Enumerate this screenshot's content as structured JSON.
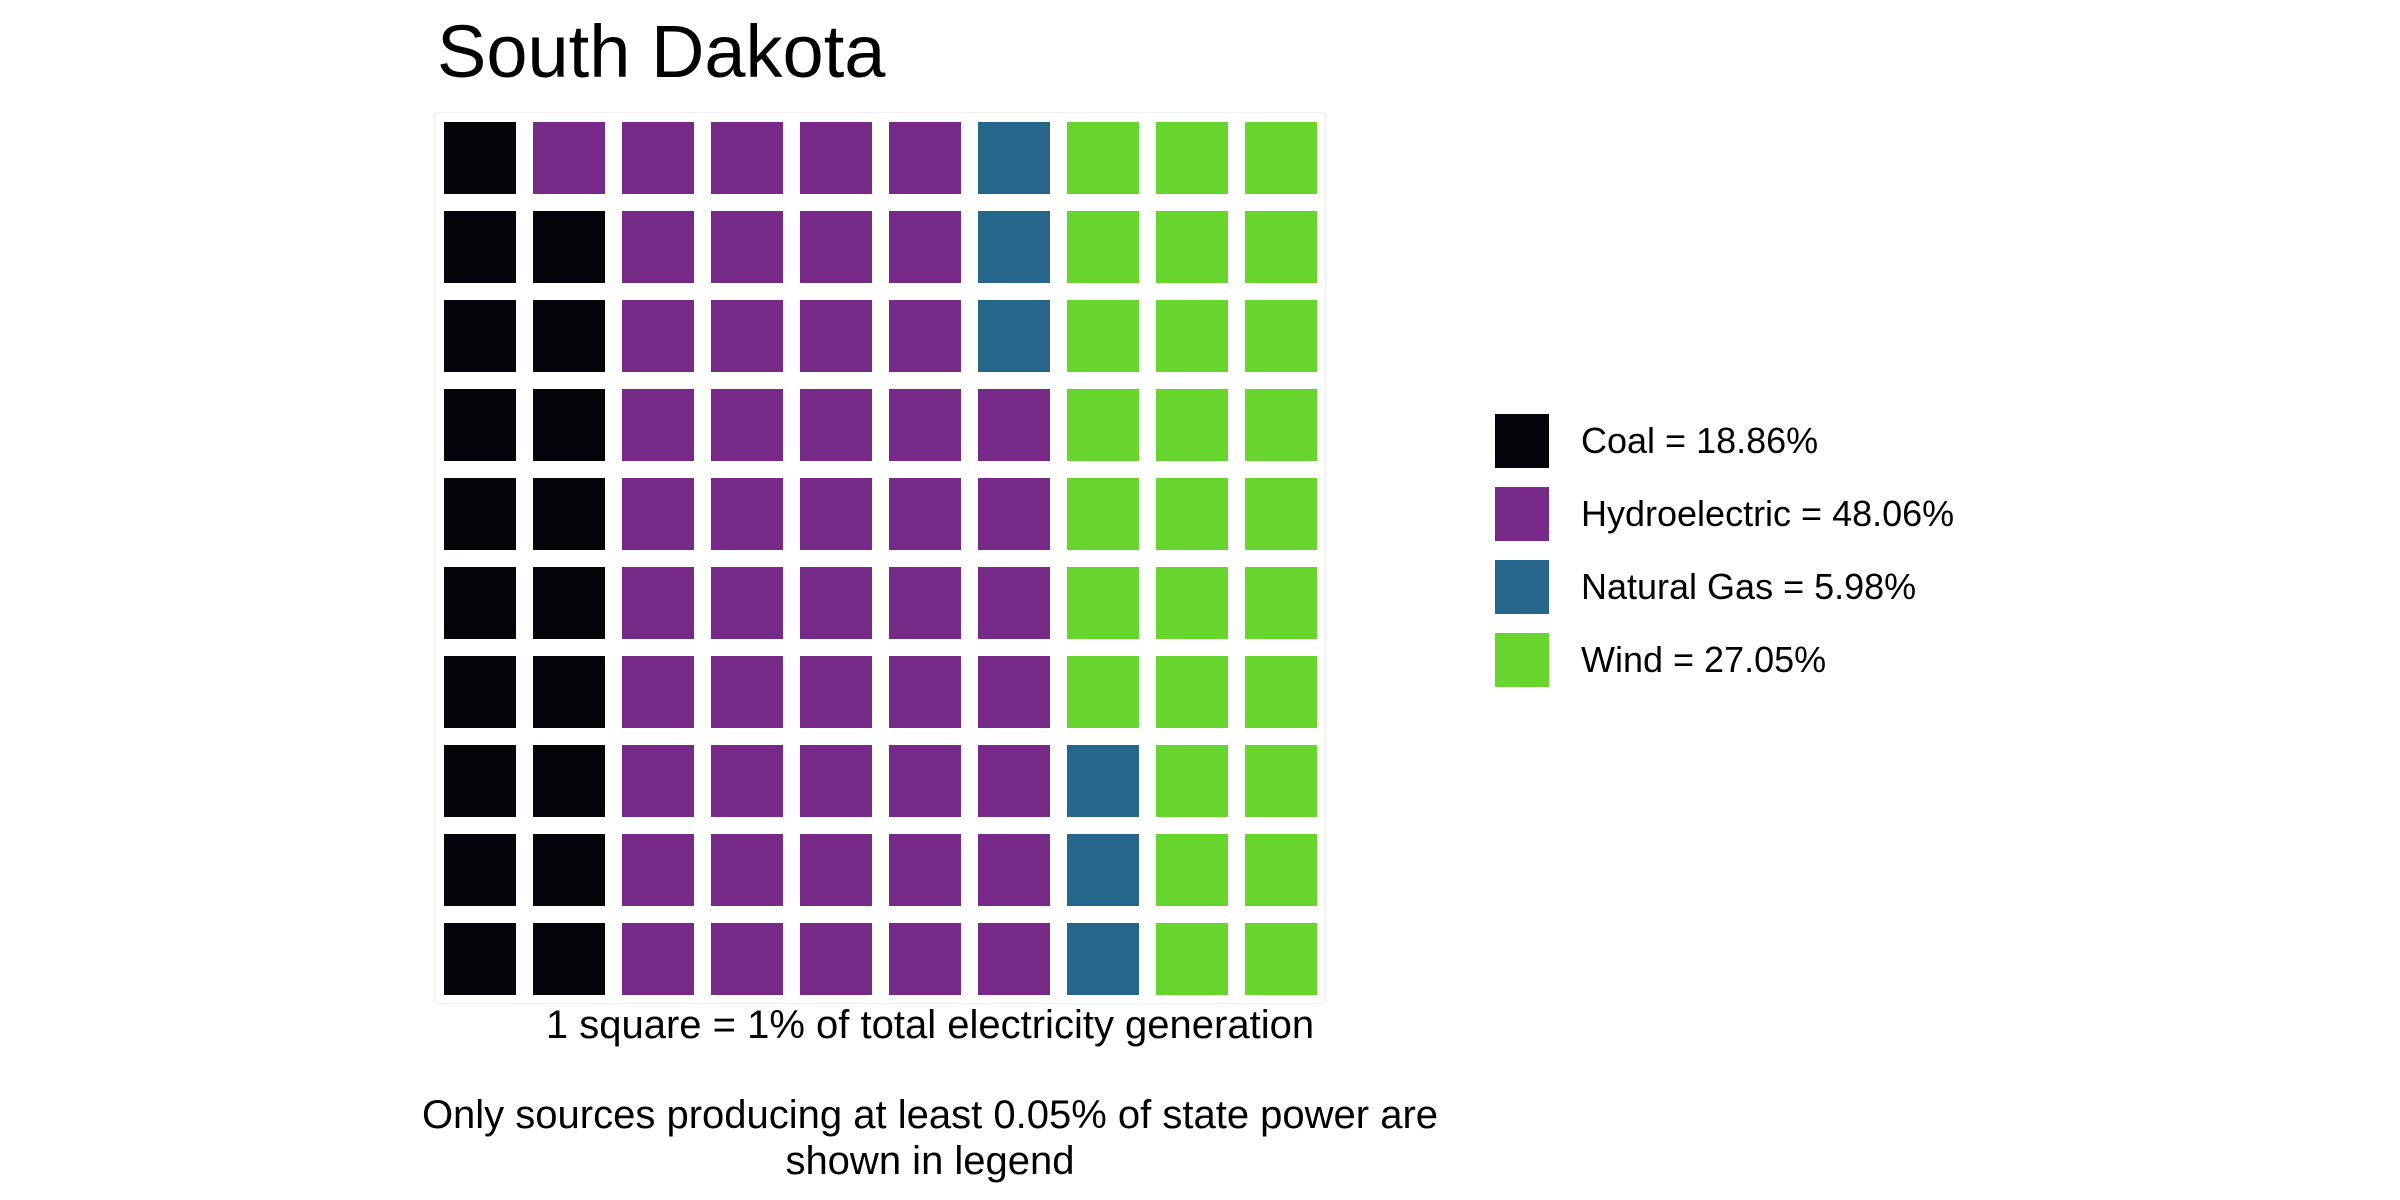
{
  "chart_data": {
    "type": "waffle",
    "title": "South Dakota",
    "grid": {
      "rows": 10,
      "cols": 10
    },
    "unit_label": "1 square = 1% of total electricity generation",
    "note": "Only sources producing at least 0.05% of state power are shown in legend",
    "legend_position": "right",
    "series": [
      {
        "name": "Coal",
        "label": "Coal = 18.86%",
        "percent": 18.86,
        "squares": 19,
        "color": "#03030a"
      },
      {
        "name": "Hydroelectric",
        "label": "Hydroelectric = 48.06%",
        "percent": 48.06,
        "squares": 48,
        "color": "#762987"
      },
      {
        "name": "Natural Gas",
        "label": "Natural Gas = 5.98%",
        "percent": 5.98,
        "squares": 6,
        "color": "#27668b"
      },
      {
        "name": "Wind",
        "label": "Wind = 27.05%",
        "percent": 27.05,
        "squares": 27,
        "color": "#68d52f"
      }
    ]
  }
}
